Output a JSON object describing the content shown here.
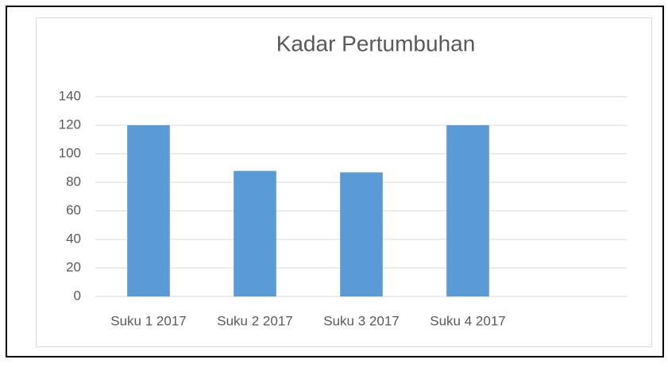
{
  "chart_data": {
    "type": "bar",
    "title": "Kadar Pertumbuhan",
    "categories": [
      "Suku 1 2017",
      "Suku 2 2017",
      "Suku 3 2017",
      "Suku 4 2017",
      null
    ],
    "values": [
      120,
      88,
      87,
      120,
      null
    ],
    "color": "#5b9bd5",
    "ylim": [
      0,
      140
    ],
    "yticks": [
      0,
      20,
      40,
      60,
      80,
      100,
      120,
      140
    ],
    "grid": true
  }
}
